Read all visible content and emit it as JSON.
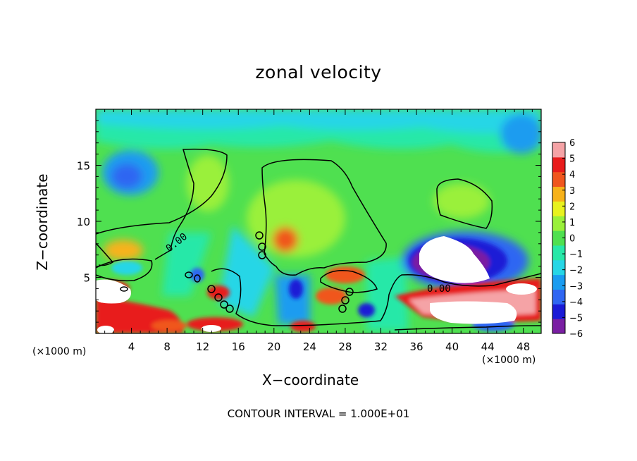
{
  "chart_data": {
    "type": "heatmap",
    "title": "zonal velocity",
    "xlabel": "X−coordinate",
    "ylabel": "Z−coordinate",
    "x_unit_left": "(×1000 m)",
    "x_unit_right": "(×1000 m)",
    "footer": "CONTOUR INTERVAL = 1.000E+01",
    "xlim": [
      0,
      50
    ],
    "ylim": [
      0,
      20
    ],
    "x_ticks": [
      4,
      8,
      12,
      16,
      20,
      24,
      28,
      32,
      36,
      40,
      44,
      48
    ],
    "y_ticks": [
      5,
      10,
      15
    ],
    "colorbar": {
      "ticks": [
        "6",
        "5",
        "4",
        "3",
        "2",
        "1",
        "0",
        "−1",
        "−2",
        "−3",
        "−4",
        "−5",
        "−6"
      ],
      "range": [
        -6,
        6
      ],
      "colors": [
        "#7a1fa3",
        "#1a1ad6",
        "#2f66f2",
        "#1a9cf0",
        "#27d6e6",
        "#28e8a8",
        "#4fe050",
        "#9af03a",
        "#e8f21f",
        "#f7b21a",
        "#f0561e",
        "#e81c1c",
        "#f5a3a6"
      ]
    },
    "contour_labels": [
      "0.00",
      "0.00"
    ],
    "grid": false,
    "legend": "colorbar-right"
  }
}
